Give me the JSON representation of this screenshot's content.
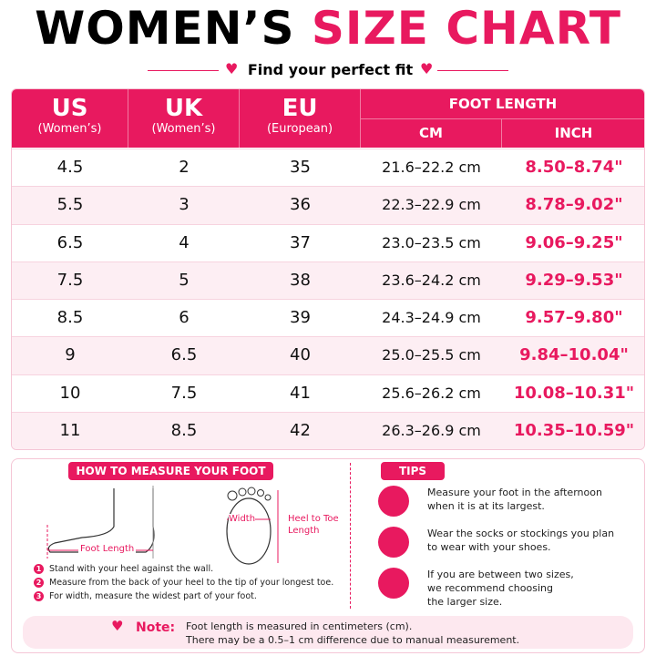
{
  "header": {
    "title_dark": "WOMEN’S",
    "title_pink": "SIZE CHART",
    "subtitle": "Find your perfect fit"
  },
  "table": {
    "headers": [
      {
        "label": "US",
        "sub": "(Women’s)"
      },
      {
        "label": "UK",
        "sub": "(Women’s)"
      },
      {
        "label": "EU",
        "sub": "(European)"
      }
    ],
    "group": {
      "label": "FOOT LENGTH",
      "columns": [
        "CM",
        "INCH"
      ]
    },
    "rows": [
      [
        "4.5",
        "2",
        "35",
        "21.6–22.2 cm",
        "8.50–8.74\""
      ],
      [
        "5.5",
        "3",
        "36",
        "22.3–22.9 cm",
        "8.78–9.02\""
      ],
      [
        "6.5",
        "4",
        "37",
        "23.0–23.5 cm",
        "9.06–9.25\""
      ],
      [
        "7.5",
        "5",
        "38",
        "23.6–24.2 cm",
        "9.29–9.53\""
      ],
      [
        "8.5",
        "6",
        "39",
        "24.3–24.9 cm",
        "9.57–9.80\""
      ],
      [
        "9",
        "6.5",
        "40",
        "25.0–25.5 cm",
        "9.84–10.04\""
      ],
      [
        "10",
        "7.5",
        "41",
        "25.6–26.2 cm",
        "10.08–10.31\""
      ],
      [
        "11",
        "8.5",
        "42",
        "26.3–26.9 cm",
        "10.35–10.59\""
      ]
    ]
  },
  "measure": {
    "title": "HOW TO MEASURE YOUR FOOT",
    "foot_length": "Foot Length",
    "width": "Width",
    "heel_to_toe": [
      "Heel to Toe",
      "Length"
    ],
    "steps": [
      {
        "number": "1",
        "text": "Stand with your heel against the wall."
      },
      {
        "number": "2",
        "text": "Measure from the back of your heel to the tip of your longest toe."
      },
      {
        "number": "3",
        "text": "For width, measure the widest part of your foot."
      }
    ]
  },
  "tips": {
    "title": "TIPS",
    "items": [
      [
        "Measure your foot in the afternoon",
        "when it is at its largest."
      ],
      [
        "Wear the socks or stockings you plan",
        "to wear with your shoes."
      ],
      [
        "If you are between two sizes,",
        "we recommend choosing",
        "the larger size."
      ]
    ]
  },
  "note": {
    "label": "Note:",
    "lines": [
      "Foot length is measured in centimeters (cm).",
      "There may be a 0.5–1 cm difference due to manual measurement."
    ]
  }
}
